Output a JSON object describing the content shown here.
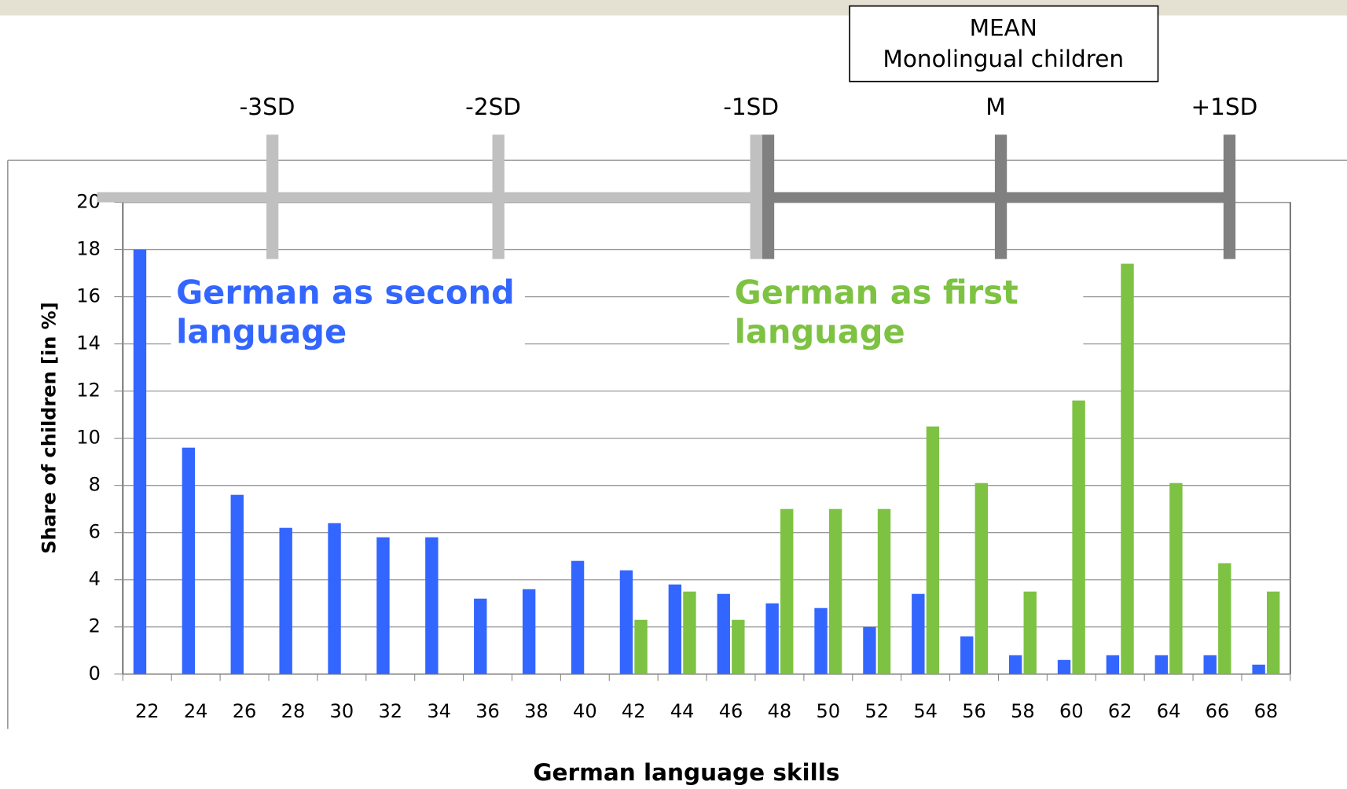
{
  "chart_data": {
    "type": "bar",
    "x_label": "German language skills",
    "y_label": "Share of children [in %]",
    "categories": [
      "22",
      "24",
      "26",
      "28",
      "30",
      "32",
      "34",
      "36",
      "38",
      "40",
      "42",
      "44",
      "46",
      "48",
      "50",
      "52",
      "54",
      "56",
      "58",
      "60",
      "62",
      "64",
      "66",
      "68"
    ],
    "series": [
      {
        "name": "German as second language",
        "color": "#3366ff",
        "values": [
          18,
          9.6,
          7.6,
          6.2,
          6.4,
          5.8,
          5.8,
          3.2,
          3.6,
          4.8,
          4.4,
          3.8,
          3.4,
          3.0,
          2.8,
          2.0,
          3.4,
          1.6,
          0.8,
          0.6,
          0.8,
          0.8,
          0.8,
          0.4
        ]
      },
      {
        "name": "German as first language",
        "color": "#7dc242",
        "values": [
          null,
          null,
          null,
          null,
          null,
          null,
          null,
          null,
          null,
          null,
          2.3,
          3.5,
          2.3,
          7,
          7,
          7,
          10.5,
          8.1,
          3.5,
          11.6,
          17.4,
          8.1,
          4.7,
          3.5
        ]
      }
    ],
    "ylim": [
      0,
      20
    ],
    "yticks": [
      0,
      2,
      4,
      6,
      8,
      10,
      12,
      14,
      16,
      18,
      20
    ],
    "grid": true,
    "sd_scale": {
      "box": [
        "MEAN",
        "Monolingual children"
      ],
      "ticks": [
        {
          "label": "-3SD",
          "x": 27.15
        },
        {
          "label": "-2SD",
          "x": 36.44
        },
        {
          "label": "-1SD",
          "x": 47.04
        },
        {
          "label": "M",
          "x": 57.1
        },
        {
          "label": "+1SD",
          "x": 66.5
        }
      ],
      "colors": [
        "#c0c0c0",
        "#808080"
      ]
    }
  }
}
